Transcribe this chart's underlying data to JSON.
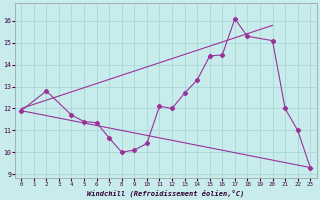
{
  "xlabel": "Windchill (Refroidissement éolien,°C)",
  "bg_color": "#c8ecec",
  "line_color": "#993399",
  "grid_color": "#a8d8d8",
  "xlim": [
    -0.5,
    23.5
  ],
  "ylim": [
    8.8,
    16.8
  ],
  "xticks": [
    0,
    1,
    2,
    3,
    4,
    5,
    6,
    7,
    8,
    9,
    10,
    11,
    12,
    13,
    14,
    15,
    16,
    17,
    18,
    19,
    20,
    21,
    22,
    23
  ],
  "yticks": [
    9,
    10,
    11,
    12,
    13,
    14,
    15,
    16
  ],
  "line1_x": [
    0,
    2,
    4,
    5,
    6,
    7,
    8,
    9,
    10,
    11,
    12,
    13,
    14,
    15,
    16,
    17,
    18,
    20,
    21,
    22,
    23
  ],
  "line1_y": [
    11.9,
    12.8,
    11.7,
    11.4,
    11.35,
    10.65,
    10.0,
    10.1,
    10.4,
    12.1,
    12.0,
    12.7,
    13.3,
    14.4,
    14.45,
    16.1,
    15.3,
    15.1,
    12.0,
    11.0,
    9.3
  ],
  "line2_x": [
    0,
    23
  ],
  "line2_y": [
    11.9,
    9.3
  ],
  "line3_x": [
    0,
    20
  ],
  "line3_y": [
    12.0,
    15.8
  ]
}
